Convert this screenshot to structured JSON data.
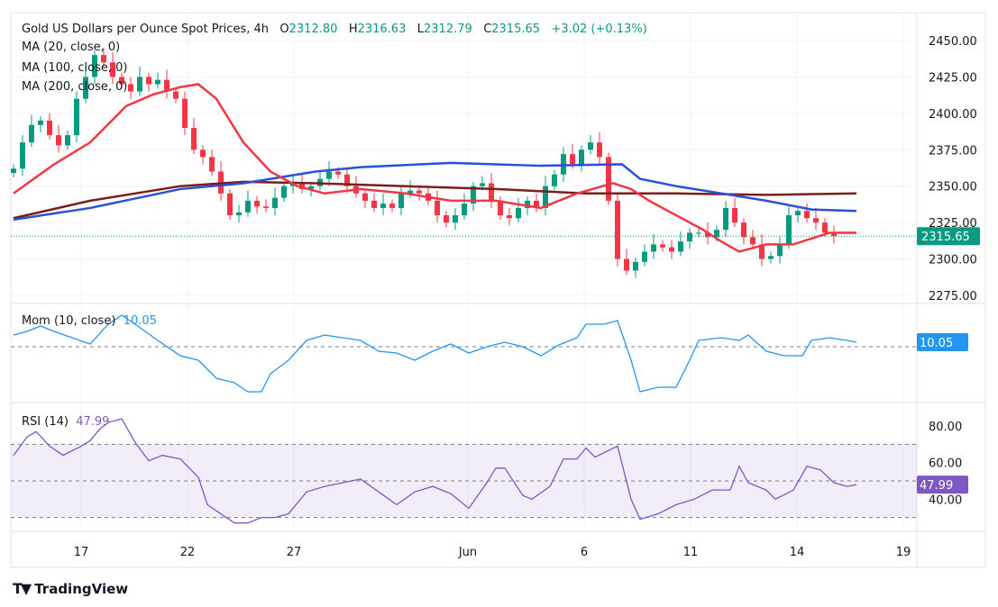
{
  "header": {
    "title": "Gold US Dollars per Ounce Spot Prices, 4h",
    "o_label": "O",
    "open": "2312.80",
    "h_label": "H",
    "high": "2316.63",
    "l_label": "L",
    "low": "2312.79",
    "c_label": "C",
    "close": "2315.65",
    "change": "+3.02 (+0.13%)"
  },
  "indicators": {
    "ma20": "MA (20, close, 0)",
    "ma100": "MA (100, close, 0)",
    "ma200": "MA (200, close, 0)",
    "mom": "Mom (10, close)",
    "mom_value": "10.05",
    "rsi": "RSI (14)",
    "rsi_value": "47.99"
  },
  "brand": "TradingView",
  "colors": {
    "up": "#089981",
    "down": "#f23645",
    "ma20": "#f23645",
    "ma100": "#2b4fd6",
    "ma200": "#7b1d1d",
    "mom": "#2196f3",
    "rsi": "#7e57c2",
    "last_price_bg": "#089981"
  },
  "chart_data": [
    {
      "type": "candlestick",
      "title": "Gold US Dollars per Ounce Spot Prices, 4h",
      "ylim": [
        2265,
        2455
      ],
      "y_ticks": [
        "2450.00",
        "2425.00",
        "2400.00",
        "2375.00",
        "2350.00",
        "2325.00",
        "2300.00",
        "2275.00"
      ],
      "x_ticks": [
        "17",
        "22",
        "27",
        "Jun",
        "6",
        "11",
        "14",
        "19"
      ],
      "last_price": "2315.65",
      "closes": [
        2362,
        2380,
        2392,
        2395,
        2385,
        2378,
        2385,
        2410,
        2425,
        2440,
        2435,
        2425,
        2420,
        2415,
        2425,
        2420,
        2423,
        2415,
        2410,
        2390,
        2375,
        2370,
        2360,
        2345,
        2330,
        2332,
        2340,
        2336,
        2335,
        2342,
        2350,
        2352,
        2348,
        2350,
        2355,
        2360,
        2358,
        2350,
        2345,
        2340,
        2335,
        2338,
        2335,
        2345,
        2347,
        2345,
        2340,
        2330,
        2325,
        2330,
        2338,
        2350,
        2352,
        2340,
        2330,
        2328,
        2335,
        2340,
        2335,
        2350,
        2358,
        2372,
        2365,
        2375,
        2380,
        2370,
        2340,
        2300,
        2292,
        2298,
        2305,
        2310,
        2308,
        2305,
        2312,
        2318,
        2318,
        2315,
        2320,
        2335,
        2325,
        2315,
        2310,
        2300,
        2302,
        2310,
        2330,
        2333,
        2328,
        2325,
        2318,
        2315.65
      ],
      "series": [
        {
          "name": "MA (20, close, 0)",
          "points": [
            [
              0,
              2345
            ],
            [
              4.5,
              2365
            ],
            [
              8.5,
              2380
            ],
            [
              12.5,
              2405
            ],
            [
              15.5,
              2413
            ],
            [
              18.5,
              2418
            ],
            [
              20.5,
              2420
            ],
            [
              22.5,
              2410
            ],
            [
              25.5,
              2380
            ],
            [
              28.5,
              2360
            ],
            [
              31.5,
              2350
            ],
            [
              34.5,
              2345
            ],
            [
              38.5,
              2348
            ],
            [
              43.5,
              2345
            ],
            [
              48.5,
              2340
            ],
            [
              53.5,
              2340
            ],
            [
              58.5,
              2335
            ],
            [
              62.5,
              2345
            ],
            [
              66.5,
              2352
            ],
            [
              68.5,
              2348
            ],
            [
              70.5,
              2340
            ],
            [
              73.5,
              2330
            ],
            [
              76.5,
              2320
            ],
            [
              78.5,
              2312
            ],
            [
              80.5,
              2305
            ],
            [
              83.5,
              2310
            ],
            [
              86.5,
              2310
            ],
            [
              90.5,
              2318
            ],
            [
              93.5,
              2318
            ]
          ]
        },
        {
          "name": "MA (100, close, 0)",
          "points": [
            [
              0,
              2327
            ],
            [
              8.5,
              2335
            ],
            [
              18.5,
              2348
            ],
            [
              25.5,
              2352
            ],
            [
              33.5,
              2360
            ],
            [
              38.5,
              2363
            ],
            [
              48.5,
              2366
            ],
            [
              53.5,
              2365
            ],
            [
              58.5,
              2364
            ],
            [
              67.5,
              2365
            ],
            [
              69.5,
              2355
            ],
            [
              73.5,
              2350
            ],
            [
              78.5,
              2345
            ],
            [
              83.5,
              2340
            ],
            [
              88.5,
              2334
            ],
            [
              93.5,
              2333
            ]
          ]
        },
        {
          "name": "MA (200, close, 0)",
          "points": [
            [
              0,
              2328
            ],
            [
              8.5,
              2340
            ],
            [
              18.5,
              2350
            ],
            [
              25.5,
              2353
            ],
            [
              33.5,
              2352
            ],
            [
              43.5,
              2350
            ],
            [
              53.5,
              2348
            ],
            [
              63.5,
              2345
            ],
            [
              73.5,
              2345
            ],
            [
              83.5,
              2344
            ],
            [
              93.5,
              2345
            ]
          ]
        }
      ]
    },
    {
      "type": "line",
      "title": "Mom (10, close)",
      "last_value": "10.05",
      "points": [
        [
          0,
          26
        ],
        [
          1.5,
          34
        ],
        [
          3,
          46
        ],
        [
          4.5,
          34
        ],
        [
          6.5,
          20
        ],
        [
          8.5,
          6
        ],
        [
          10.5,
          50
        ],
        [
          12,
          70
        ],
        [
          13.5,
          50
        ],
        [
          16,
          14
        ],
        [
          18.5,
          -20
        ],
        [
          20.5,
          -30
        ],
        [
          22.5,
          -70
        ],
        [
          24.5,
          -80
        ],
        [
          26,
          -100
        ],
        [
          27.5,
          -100
        ],
        [
          28.5,
          -60
        ],
        [
          30.5,
          -30
        ],
        [
          32.5,
          14
        ],
        [
          34.5,
          26
        ],
        [
          36.5,
          20
        ],
        [
          38.5,
          14
        ],
        [
          40.5,
          -10
        ],
        [
          42.5,
          -14
        ],
        [
          44.5,
          -30
        ],
        [
          46.5,
          -10
        ],
        [
          48.5,
          6
        ],
        [
          50.5,
          -14
        ],
        [
          52.5,
          0
        ],
        [
          54.5,
          10
        ],
        [
          56.5,
          0
        ],
        [
          58.5,
          -20
        ],
        [
          60.5,
          4
        ],
        [
          62.5,
          20
        ],
        [
          63.5,
          50
        ],
        [
          65.5,
          50
        ],
        [
          67,
          58
        ],
        [
          68.5,
          -30
        ],
        [
          69.5,
          -100
        ],
        [
          71.5,
          -90
        ],
        [
          73.5,
          -90
        ],
        [
          75,
          -30
        ],
        [
          76,
          14
        ],
        [
          78.5,
          20
        ],
        [
          80.5,
          14
        ],
        [
          81.5,
          26
        ],
        [
          83.5,
          -10
        ],
        [
          85.5,
          -20
        ],
        [
          87.5,
          -20
        ],
        [
          88.5,
          14
        ],
        [
          90.5,
          20
        ],
        [
          92.5,
          14
        ],
        [
          93.5,
          10.05
        ]
      ]
    },
    {
      "type": "line",
      "title": "RSI (14)",
      "ylim": [
        20,
        90
      ],
      "y_ticks": [
        "80.00",
        "60.00",
        "40.00"
      ],
      "bands": [
        30,
        50,
        70
      ],
      "last_value": "47.99",
      "points": [
        [
          0,
          64
        ],
        [
          1.5,
          74
        ],
        [
          2.5,
          77
        ],
        [
          4,
          69
        ],
        [
          5.5,
          64
        ],
        [
          7.5,
          69
        ],
        [
          8.5,
          72
        ],
        [
          9.5,
          78
        ],
        [
          10.5,
          82
        ],
        [
          12,
          84
        ],
        [
          13.5,
          71
        ],
        [
          15,
          61
        ],
        [
          16.5,
          64
        ],
        [
          18.5,
          62
        ],
        [
          20.5,
          52
        ],
        [
          21.5,
          37
        ],
        [
          23,
          32
        ],
        [
          24.5,
          27
        ],
        [
          26,
          27
        ],
        [
          27.5,
          30
        ],
        [
          29,
          30
        ],
        [
          30.5,
          32
        ],
        [
          32.5,
          44
        ],
        [
          34.5,
          47
        ],
        [
          36.5,
          49
        ],
        [
          38.5,
          51
        ],
        [
          40.5,
          44
        ],
        [
          42.5,
          37
        ],
        [
          44.5,
          44
        ],
        [
          46.5,
          47
        ],
        [
          48.5,
          43
        ],
        [
          50.5,
          35
        ],
        [
          52.5,
          49
        ],
        [
          53.5,
          57
        ],
        [
          54.5,
          57
        ],
        [
          56.5,
          42
        ],
        [
          57.5,
          40
        ],
        [
          59.5,
          47
        ],
        [
          61,
          62
        ],
        [
          62.5,
          62
        ],
        [
          63.5,
          68
        ],
        [
          64.5,
          63
        ],
        [
          67,
          69
        ],
        [
          68.5,
          40
        ],
        [
          69.5,
          29
        ],
        [
          71.5,
          32
        ],
        [
          73.5,
          37
        ],
        [
          75.5,
          40
        ],
        [
          77.5,
          45
        ],
        [
          79.5,
          45
        ],
        [
          80.5,
          58
        ],
        [
          81.5,
          49
        ],
        [
          83.5,
          45
        ],
        [
          84.5,
          40
        ],
        [
          86.5,
          45
        ],
        [
          88,
          58
        ],
        [
          89.5,
          56
        ],
        [
          91,
          49
        ],
        [
          92.5,
          47
        ],
        [
          93.5,
          47.99
        ]
      ]
    }
  ]
}
